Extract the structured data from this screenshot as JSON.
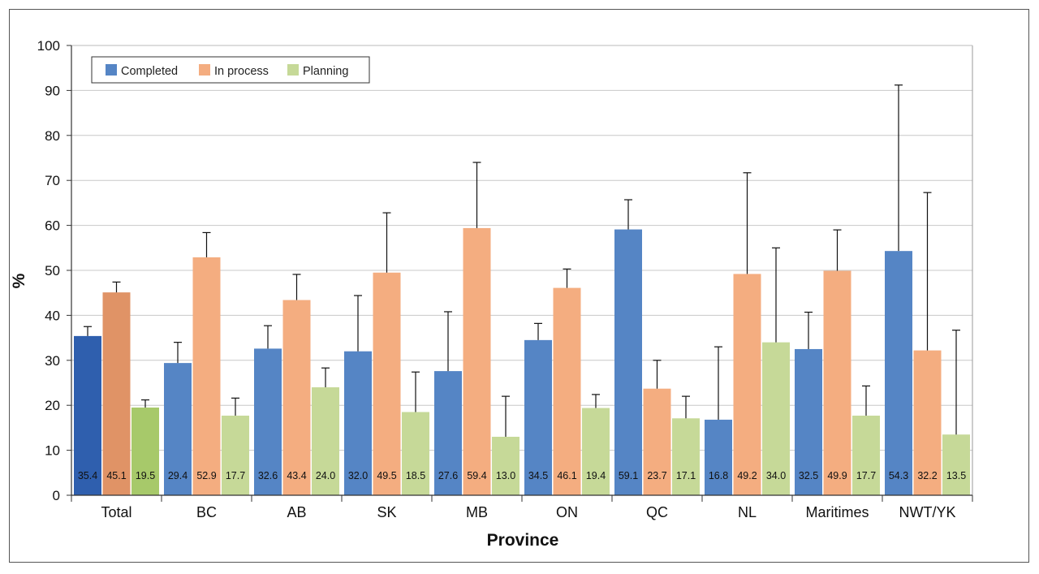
{
  "chart_data": {
    "type": "bar",
    "title": "",
    "xlabel": "Province",
    "ylabel": "%",
    "ylim": [
      0,
      100
    ],
    "yticks": [
      0,
      10,
      20,
      30,
      40,
      50,
      60,
      70,
      80,
      90,
      100
    ],
    "grid": true,
    "legend_position": "top-left",
    "categories": [
      "Total",
      "BC",
      "AB",
      "SK",
      "MB",
      "ON",
      "QC",
      "NL",
      "Maritimes",
      "NWT/YK"
    ],
    "series": [
      {
        "name": "Completed",
        "color": "#5585C5",
        "highlight_color": "#2F5FAE",
        "values": [
          35.4,
          29.4,
          32.6,
          32.0,
          27.6,
          34.5,
          59.1,
          16.8,
          32.5,
          54.3
        ],
        "labels": [
          "35.4",
          "29.4",
          "32.6",
          "32.0",
          "27.6",
          "34.5",
          "59.1",
          "16.8",
          "32.5",
          "54.3"
        ],
        "error_upper": [
          37.5,
          34.0,
          37.7,
          44.4,
          40.8,
          38.2,
          65.7,
          33.0,
          40.7,
          91.2
        ]
      },
      {
        "name": "In process",
        "color": "#F4AD80",
        "highlight_color": "#E09366",
        "values": [
          45.1,
          52.9,
          43.4,
          49.5,
          59.4,
          46.1,
          23.7,
          49.2,
          49.9,
          32.2
        ],
        "labels": [
          "45.1",
          "52.9",
          "43.4",
          "49.5",
          "59.4",
          "46.1",
          "23.7",
          "49.2",
          "49.9",
          "32.2"
        ],
        "error_upper": [
          47.4,
          58.4,
          49.1,
          62.8,
          74.0,
          50.3,
          30.0,
          71.7,
          59.0,
          67.3
        ]
      },
      {
        "name": "Planning",
        "color": "#C6D998",
        "highlight_color": "#A7C96A",
        "values": [
          19.5,
          17.7,
          24.0,
          18.5,
          13.0,
          19.4,
          17.1,
          34.0,
          17.7,
          13.5
        ],
        "labels": [
          "19.5",
          "17.7",
          "24.0",
          "18.5",
          "13.0",
          "19.4",
          "17.1",
          "34.0",
          "17.7",
          "13.5"
        ],
        "error_upper": [
          21.2,
          21.6,
          28.3,
          27.4,
          22.0,
          22.4,
          22.0,
          55.0,
          24.3,
          36.7
        ]
      }
    ]
  }
}
